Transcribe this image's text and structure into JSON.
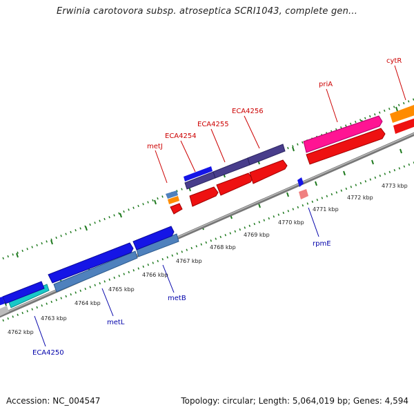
{
  "title": "Erwinia carotovora subsp. atroseptica SCRI1043, complete gen...",
  "footer": {
    "accession": "Accession: NC_004547",
    "summary": "Topology: circular; Length: 5,064,019 bp; Genes: 4,594"
  },
  "colors": {
    "backbone": "#8a8a8a",
    "tick": "#1f7a1f",
    "forward_label": "#cc0000",
    "reverse_label": "#0000aa",
    "kbp_label": "#222222"
  },
  "ruler_labels": [
    "4762 kbp",
    "4763 kbp",
    "4764 kbp",
    "4765 kbp",
    "4766 kbp",
    "4767 kbp",
    "4768 kbp",
    "4769 kbp",
    "4770 kbp",
    "4771 kbp",
    "4772 kbp",
    "4773 kbp"
  ],
  "gene_labels": {
    "metJ": "metJ",
    "ECA4254": "ECA4254",
    "ECA4255": "ECA4255",
    "ECA4256": "ECA4256",
    "priA": "priA",
    "cytR": "cytR",
    "ECA4250": "ECA4250",
    "metL": "metL",
    "metB": "metB",
    "rpmE": "rpmE"
  }
}
